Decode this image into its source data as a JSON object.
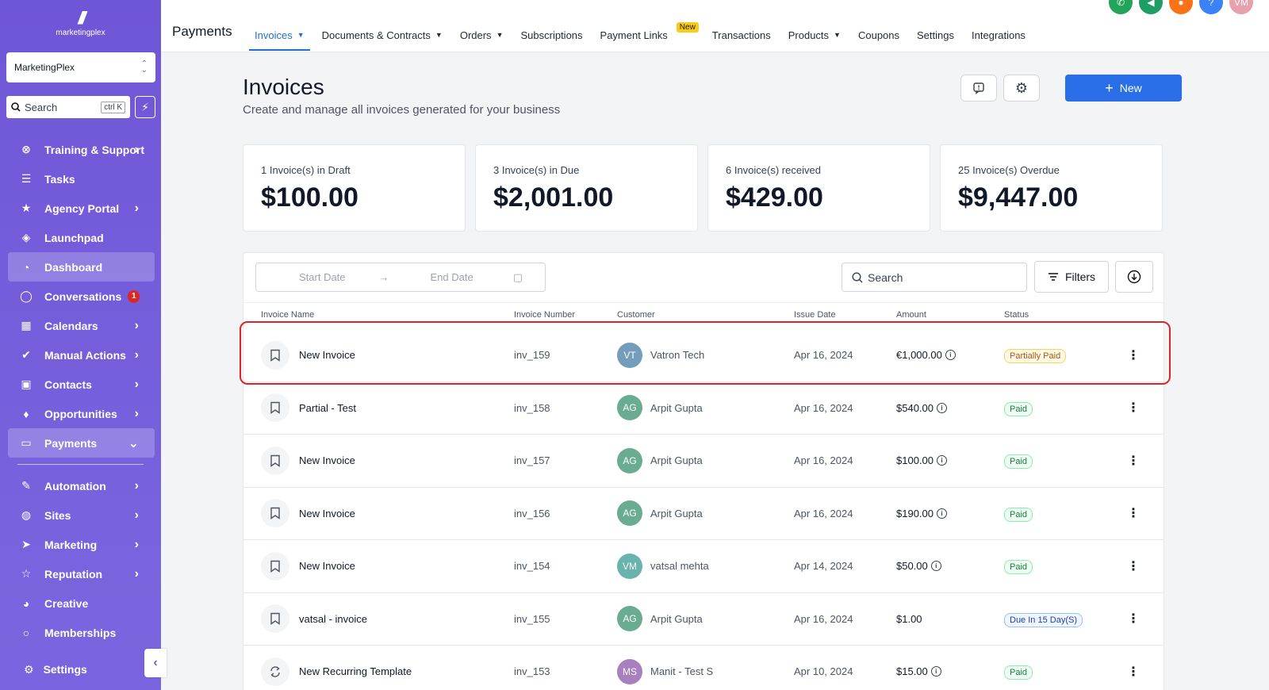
{
  "sidebar": {
    "logo_text": "marketingplex",
    "account": "MarketingPlex",
    "search_placeholder": "Search",
    "search_shortcut": "ctrl K",
    "items": [
      {
        "label": "Training & Support",
        "icon": "x-circle-icon",
        "chevron": true
      },
      {
        "label": "Tasks",
        "icon": "list-icon",
        "chevron": false
      },
      {
        "label": "Agency Portal",
        "icon": "star-icon",
        "chevron": true
      },
      {
        "label": "Launchpad",
        "icon": "rocket-icon",
        "chevron": false
      },
      {
        "label": "Dashboard",
        "icon": "gauge-icon",
        "chevron": false,
        "active": true
      },
      {
        "label": "Conversations",
        "icon": "chat-icon",
        "chevron": false,
        "badge": "1"
      },
      {
        "label": "Calendars",
        "icon": "calendar-icon",
        "chevron": true
      },
      {
        "label": "Manual Actions",
        "icon": "check-circle-icon",
        "chevron": true
      },
      {
        "label": "Contacts",
        "icon": "contact-icon",
        "chevron": true
      },
      {
        "label": "Opportunities",
        "icon": "funnel-icon",
        "chevron": true
      },
      {
        "label": "Payments",
        "icon": "card-icon",
        "chevron": true,
        "active": true,
        "expanded": true
      }
    ],
    "items2": [
      {
        "label": "Automation",
        "icon": "wand-icon",
        "chevron": true
      },
      {
        "label": "Sites",
        "icon": "globe-icon",
        "chevron": true
      },
      {
        "label": "Marketing",
        "icon": "send-icon",
        "chevron": true
      },
      {
        "label": "Reputation",
        "icon": "star-outline-icon",
        "chevron": true
      },
      {
        "label": "Creative",
        "icon": "palette-icon",
        "chevron": false
      },
      {
        "label": "Memberships",
        "icon": "circle-icon",
        "chevron": false
      }
    ],
    "settings_label": "Settings"
  },
  "topbar": {
    "section_title": "Payments",
    "tabs": [
      {
        "label": "Invoices",
        "dropdown": true,
        "active": true
      },
      {
        "label": "Documents & Contracts",
        "dropdown": true
      },
      {
        "label": "Orders",
        "dropdown": true
      },
      {
        "label": "Subscriptions",
        "dropdown": false
      },
      {
        "label": "Payment Links",
        "dropdown": false,
        "badge": "New"
      },
      {
        "label": "Transactions",
        "dropdown": false
      },
      {
        "label": "Products",
        "dropdown": true
      },
      {
        "label": "Coupons",
        "dropdown": false
      },
      {
        "label": "Settings",
        "dropdown": false
      },
      {
        "label": "Integrations",
        "dropdown": false
      }
    ],
    "user_initials": "VM"
  },
  "header": {
    "title": "Invoices",
    "subtitle": "Create and manage all invoices generated for your business",
    "new_label": "New"
  },
  "stats": [
    {
      "label": "1 Invoice(s) in Draft",
      "value": "$100.00"
    },
    {
      "label": "3 Invoice(s) in Due",
      "value": "$2,001.00"
    },
    {
      "label": "6 Invoice(s) received",
      "value": "$429.00"
    },
    {
      "label": "25 Invoice(s) Overdue",
      "value": "$9,447.00"
    }
  ],
  "table": {
    "start_date_placeholder": "Start Date",
    "end_date_placeholder": "End Date",
    "search_placeholder": "Search",
    "filters_label": "Filters",
    "columns": {
      "name": "Invoice Name",
      "number": "Invoice Number",
      "customer": "Customer",
      "issue_date": "Issue Date",
      "amount": "Amount",
      "status": "Status"
    },
    "rows": [
      {
        "name": "New Invoice",
        "icon": "bookmark-icon",
        "number": "inv_159",
        "initials": "VT",
        "avatar_color": "#5b8db0",
        "customer": "Vatron Tech",
        "date": "Apr 16, 2024",
        "amount": "€1,000.00",
        "info": true,
        "status": "Partially Paid",
        "status_type": "partial"
      },
      {
        "name": "Partial - Test",
        "icon": "bookmark-icon",
        "number": "inv_158",
        "initials": "AG",
        "avatar_color": "#4f9e7f",
        "customer": "Arpit Gupta",
        "date": "Apr 16, 2024",
        "amount": "$540.00",
        "info": true,
        "status": "Paid",
        "status_type": "paid"
      },
      {
        "name": "New Invoice",
        "icon": "bookmark-icon",
        "number": "inv_157",
        "initials": "AG",
        "avatar_color": "#4f9e7f",
        "customer": "Arpit Gupta",
        "date": "Apr 16, 2024",
        "amount": "$100.00",
        "info": true,
        "status": "Paid",
        "status_type": "paid"
      },
      {
        "name": "New Invoice",
        "icon": "bookmark-icon",
        "number": "inv_156",
        "initials": "AG",
        "avatar_color": "#4f9e7f",
        "customer": "Arpit Gupta",
        "date": "Apr 16, 2024",
        "amount": "$190.00",
        "info": true,
        "status": "Paid",
        "status_type": "paid"
      },
      {
        "name": "New Invoice",
        "icon": "bookmark-icon",
        "number": "inv_154",
        "initials": "VM",
        "avatar_color": "#4fa6a0",
        "customer": "vatsal mehta",
        "date": "Apr 14, 2024",
        "amount": "$50.00",
        "info": true,
        "status": "Paid",
        "status_type": "paid"
      },
      {
        "name": "vatsal - invoice",
        "icon": "bookmark-icon",
        "number": "inv_155",
        "initials": "AG",
        "avatar_color": "#4f9e7f",
        "customer": "Arpit Gupta",
        "date": "Apr 16, 2024",
        "amount": "$1.00",
        "info": false,
        "status": "Due In 15 Day(S)",
        "status_type": "due"
      },
      {
        "name": "New Recurring Template",
        "icon": "recurring-icon",
        "number": "inv_153",
        "initials": "MS",
        "avatar_color": "#9b6bb5",
        "customer": "Manit - Test S",
        "date": "Apr 10, 2024",
        "amount": "$15.00",
        "info": true,
        "status": "Paid",
        "status_type": "paid"
      }
    ]
  },
  "colors": {
    "sidebar": "#6f56d6",
    "accent": "#2a6fe8",
    "highlight": "#dc2626"
  }
}
